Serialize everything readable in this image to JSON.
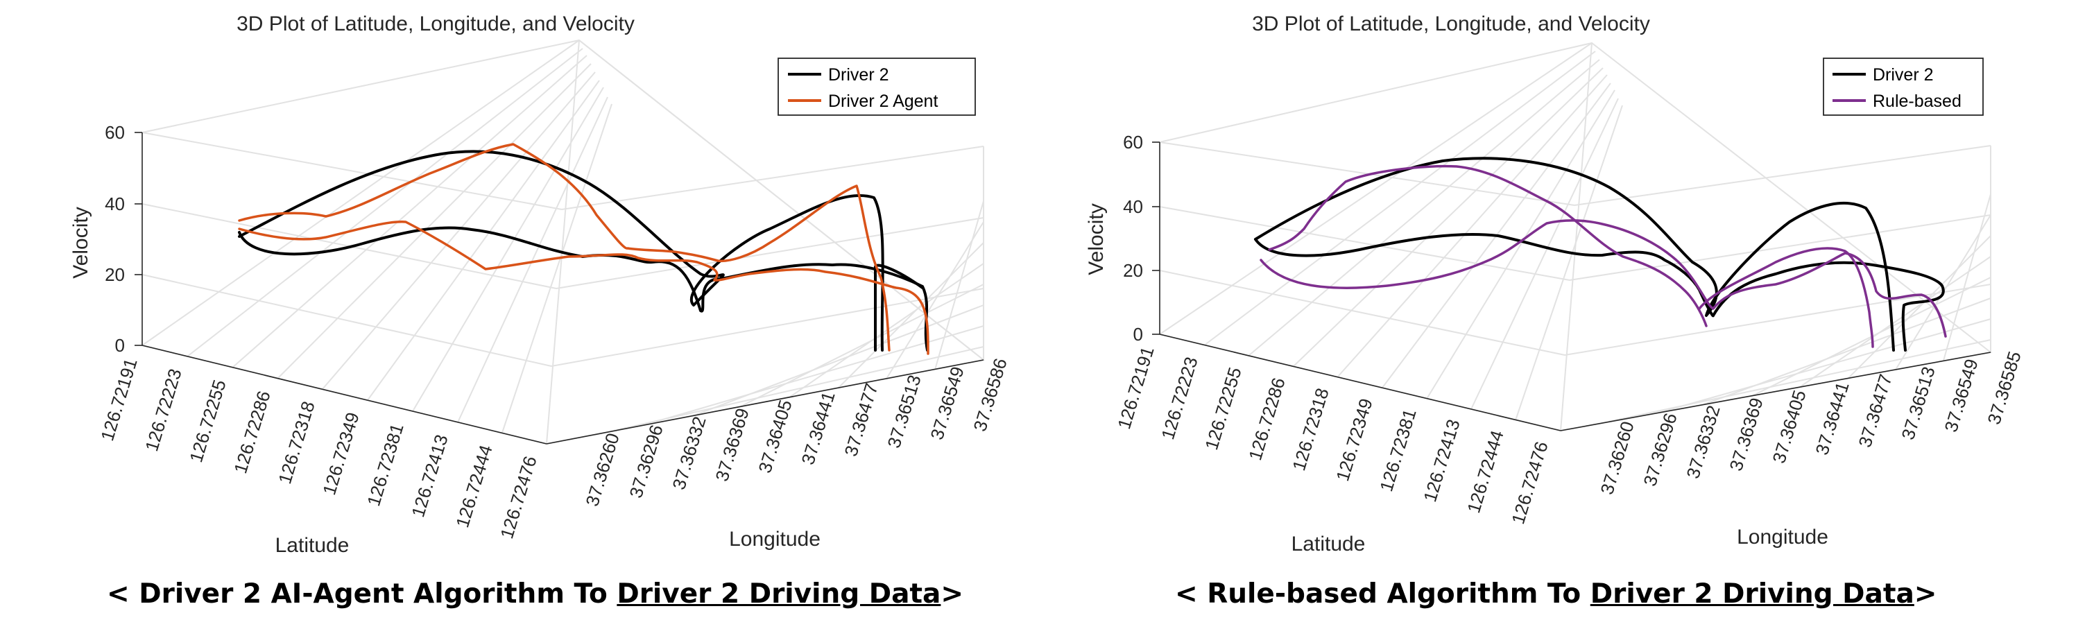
{
  "chart_data": [
    {
      "type": "line",
      "title": "3D Plot of Latitude, Longitude, and Velocity",
      "xlabel": "Latitude",
      "ylabel": "Longitude",
      "zlabel": "Velocity",
      "x_ticks": [
        "126.72191",
        "126.72223",
        "126.72255",
        "126.72286",
        "126.72318",
        "126.72349",
        "126.72381",
        "126.72413",
        "126.72444",
        "126.72476"
      ],
      "y_ticks": [
        "37.36260",
        "37.36296",
        "37.36332",
        "37.36369",
        "37.36405",
        "37.36441",
        "37.36477",
        "37.36513",
        "37.36549",
        "37.36586"
      ],
      "z_ticks": [
        "0",
        "20",
        "40",
        "60"
      ],
      "zlim": [
        0,
        60
      ],
      "grid": true,
      "legend_position": "top-right",
      "series": [
        {
          "name": "Driver 2",
          "color": "#000000"
        },
        {
          "name": "Driver 2 Agent",
          "color": "#d95319"
        }
      ],
      "caption": {
        "prefix": "< Driver 2 AI-Agent Algorithm To ",
        "underlined": "Driver 2 Driving Data",
        "suffix": ">"
      }
    },
    {
      "type": "line",
      "title": "3D Plot of Latitude, Longitude, and Velocity",
      "xlabel": "Latitude",
      "ylabel": "Longitude",
      "zlabel": "Velocity",
      "x_ticks": [
        "126.72191",
        "126.72223",
        "126.72255",
        "126.72286",
        "126.72318",
        "126.72349",
        "126.72381",
        "126.72413",
        "126.72444",
        "126.72476"
      ],
      "y_ticks": [
        "37.36260",
        "37.36296",
        "37.36332",
        "37.36369",
        "37.36405",
        "37.36441",
        "37.36477",
        "37.36513",
        "37.36549",
        "37.36585"
      ],
      "z_ticks": [
        "0",
        "20",
        "40",
        "60"
      ],
      "zlim": [
        0,
        60
      ],
      "grid": true,
      "legend_position": "top-right",
      "series": [
        {
          "name": "Driver 2",
          "color": "#000000"
        },
        {
          "name": "Rule-based",
          "color": "#7e2f8e"
        }
      ],
      "caption": {
        "prefix": "< Rule-based Algorithm To ",
        "underlined": "Driver 2 Driving Data",
        "suffix": ">"
      }
    }
  ]
}
